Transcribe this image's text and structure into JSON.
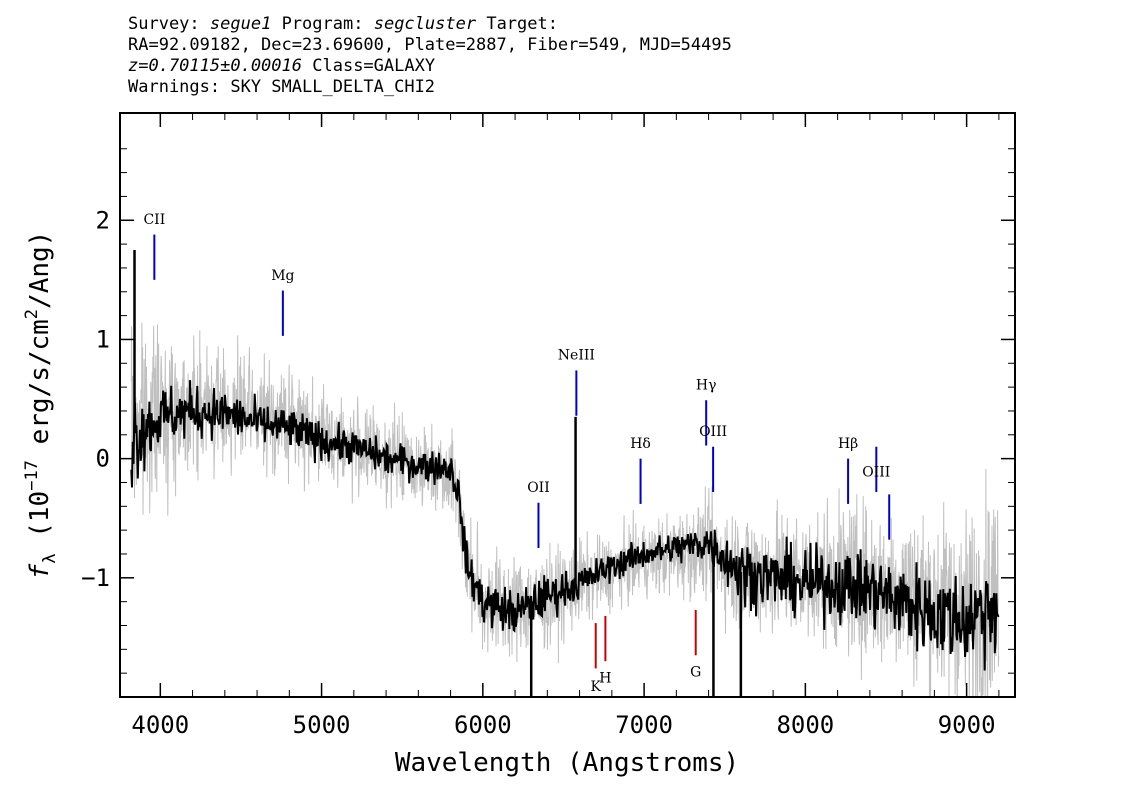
{
  "header": {
    "survey_label": "Survey:",
    "survey": "segue1",
    "program_label": "Program:",
    "program": "segcluster",
    "target_label": "Target:",
    "coords": "RA=92.09182, Dec=23.69600, Plate=2887, Fiber=549, MJD=54495",
    "redshift": "z=0.70115±0.00016",
    "class": "Class=GALAXY",
    "warnings": "Warnings: SKY SMALL_DELTA_CHI2"
  },
  "chart_data": {
    "type": "line",
    "xlabel": "Wavelength (Angstroms)",
    "ylabel_prefix": "f",
    "ylabel_sub": "λ",
    "ylabel_rest": " (10",
    "ylabel_exp": "−17",
    "ylabel_units": " erg/s/cm",
    "ylabel_sq": "2",
    "ylabel_end": "/Ang)",
    "xlim": [
      3750,
      9300
    ],
    "ylim": [
      -2.0,
      2.9
    ],
    "x_ticks": [
      4000,
      5000,
      6000,
      7000,
      8000,
      9000
    ],
    "x_tick_labels": [
      "4000",
      "5000",
      "6000",
      "7000",
      "8000",
      "9000"
    ],
    "y_ticks": [
      -1,
      0,
      1,
      2
    ],
    "y_tick_labels": [
      "−1",
      "0",
      "1",
      "2"
    ],
    "grid": false,
    "series": [
      {
        "role": "flux-error",
        "color": "#c0c0c0",
        "x": [
          3820,
          3900,
          4000,
          4200,
          4400,
          4600,
          4800,
          5000,
          5200,
          5400,
          5600,
          5800,
          5850,
          5900,
          6000,
          6200,
          6400,
          6600,
          6800,
          7000,
          7200,
          7400,
          7600,
          7800,
          8000,
          8200,
          8400,
          8600,
          8800,
          9000,
          9200
        ],
        "y": [
          0.3,
          0.35,
          0.4,
          0.45,
          0.42,
          0.35,
          0.32,
          0.2,
          0.1,
          0.0,
          -0.05,
          -0.1,
          -0.3,
          -0.9,
          -1.2,
          -1.25,
          -1.2,
          -1.05,
          -0.95,
          -0.85,
          -0.8,
          -0.75,
          -0.95,
          -0.95,
          -1.0,
          -1.0,
          -1.05,
          -1.1,
          -1.2,
          -1.3,
          -1.2
        ],
        "noise": [
          1.1,
          0.9,
          0.7,
          0.6,
          0.55,
          0.5,
          0.5,
          0.45,
          0.4,
          0.4,
          0.4,
          0.4,
          0.4,
          0.5,
          0.5,
          0.5,
          0.45,
          0.4,
          0.35,
          0.35,
          0.4,
          0.45,
          0.6,
          0.6,
          0.65,
          0.7,
          0.75,
          0.8,
          0.85,
          0.95,
          1.2
        ]
      },
      {
        "role": "flux",
        "color": "#000000",
        "x": [
          3820,
          3900,
          4000,
          4200,
          4400,
          4600,
          4800,
          5000,
          5200,
          5400,
          5600,
          5800,
          5850,
          5900,
          6000,
          6200,
          6400,
          6600,
          6800,
          7000,
          7200,
          7400,
          7600,
          7800,
          8000,
          8200,
          8400,
          8600,
          8800,
          9000,
          9200
        ],
        "y": [
          0.2,
          0.25,
          0.35,
          0.4,
          0.38,
          0.3,
          0.25,
          0.15,
          0.1,
          0.0,
          -0.05,
          -0.08,
          -0.3,
          -0.9,
          -1.2,
          -1.3,
          -1.15,
          -1.05,
          -0.9,
          -0.8,
          -0.75,
          -0.7,
          -0.95,
          -1.0,
          -1.05,
          -1.05,
          -1.1,
          -1.2,
          -1.3,
          -1.35,
          -1.2
        ],
        "noise": [
          0.55,
          0.35,
          0.3,
          0.25,
          0.22,
          0.2,
          0.2,
          0.18,
          0.16,
          0.16,
          0.16,
          0.16,
          0.16,
          0.2,
          0.22,
          0.22,
          0.2,
          0.16,
          0.14,
          0.14,
          0.16,
          0.2,
          0.3,
          0.3,
          0.32,
          0.34,
          0.36,
          0.4,
          0.42,
          0.45,
          0.5
        ]
      }
    ],
    "spikes": [
      {
        "x": 6575,
        "y": 0.35
      },
      {
        "x": 6300,
        "y": -2.0
      },
      {
        "x": 7430,
        "y": -2.0
      },
      {
        "x": 7600,
        "y": -2.0
      },
      {
        "x": 3840,
        "y": 1.75
      }
    ],
    "emission_lines": [
      {
        "label": "CII",
        "x": 3963,
        "y_top": 1.88,
        "y_bottom": 1.5,
        "label_y": 1.97,
        "color": "#0000cc"
      },
      {
        "label": "Mg",
        "x": 4760,
        "y_top": 1.41,
        "y_bottom": 1.03,
        "label_y": 1.5,
        "color": "#0000cc"
      },
      {
        "label": "NeIII",
        "x": 6580,
        "y_top": 0.74,
        "y_bottom": 0.36,
        "label_y": 0.83,
        "color": "#0000cc"
      },
      {
        "label": "OII",
        "x": 6345,
        "y_top": -0.37,
        "y_bottom": -0.75,
        "label_y": -0.28,
        "color": "#0000cc"
      },
      {
        "label": "Hδ",
        "x": 6978,
        "y_top": -0.0,
        "y_bottom": -0.38,
        "label_y": 0.09,
        "color": "#0000cc"
      },
      {
        "label": "Hγ",
        "x": 7385,
        "y_top": 0.49,
        "y_bottom": 0.11,
        "label_y": 0.58,
        "color": "#0000cc"
      },
      {
        "label": "OIII",
        "x": 7428,
        "y_top": 0.1,
        "y_bottom": -0.28,
        "label_y": 0.19,
        "color": "#0000cc"
      },
      {
        "label": "Hβ",
        "x": 8265,
        "y_top": 0.0,
        "y_bottom": -0.38,
        "label_y": 0.09,
        "color": "#0000cc"
      },
      {
        "label": "OIII",
        "x": 8440,
        "y_top": 0.1,
        "y_bottom": -0.28,
        "label_y": -0.15,
        "color": "#0000cc"
      },
      {
        "label": "",
        "x": 8520,
        "y_top": -0.3,
        "y_bottom": -0.68,
        "label_y": 0,
        "color": "#0000cc"
      }
    ],
    "absorption_lines": [
      {
        "label": "K",
        "x": 6700,
        "y_top": -1.38,
        "y_bottom": -1.76,
        "label_y": -1.95,
        "color": "#cc0000"
      },
      {
        "label": "H",
        "x": 6760,
        "y_top": -1.32,
        "y_bottom": -1.7,
        "label_y": -1.88,
        "color": "#cc0000"
      },
      {
        "label": "G",
        "x": 7320,
        "y_top": -1.27,
        "y_bottom": -1.65,
        "label_y": -1.83,
        "color": "#cc0000"
      }
    ]
  }
}
